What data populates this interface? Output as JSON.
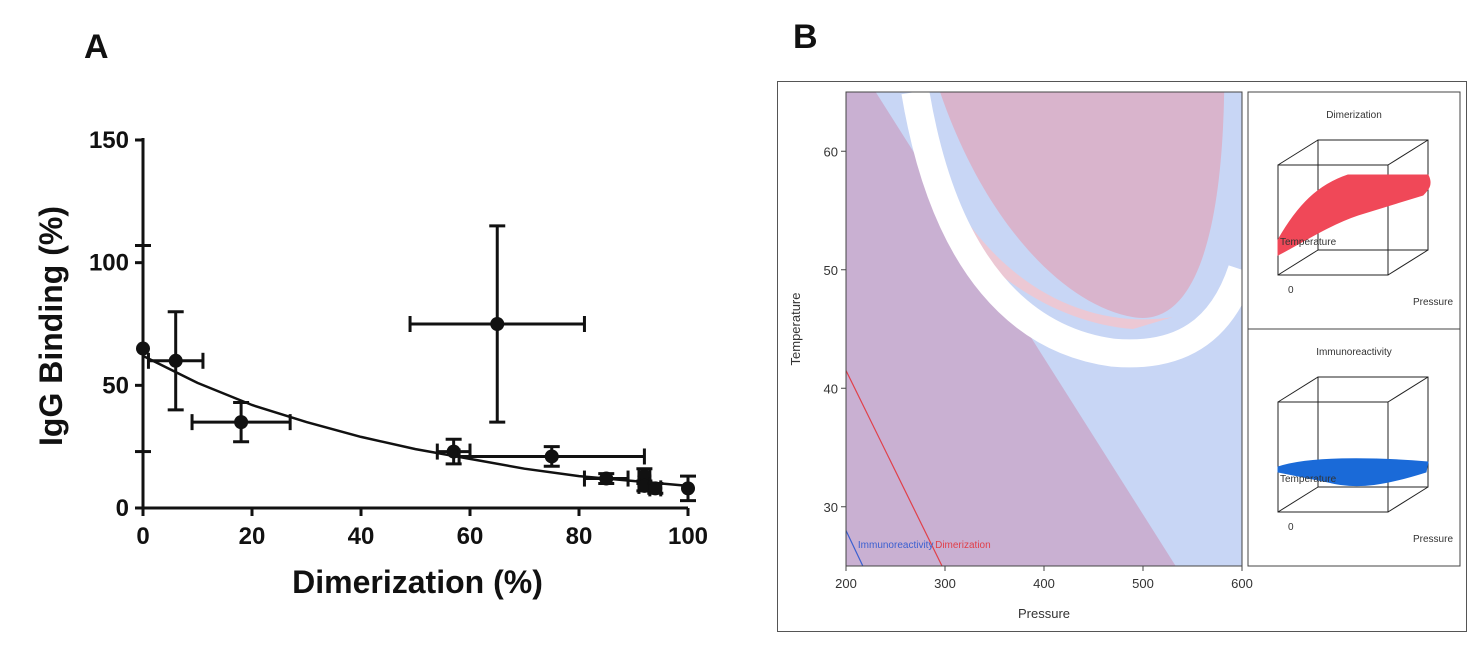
{
  "panel_a": {
    "letter": "A",
    "chart_data": {
      "type": "scatter",
      "xlabel": "Dimerization (%)",
      "ylabel": "IgG Binding (%)",
      "xlim": [
        0,
        100
      ],
      "ylim": [
        0,
        150
      ],
      "x_ticks": [
        "0",
        "20",
        "40",
        "60",
        "80",
        "100"
      ],
      "y_ticks": [
        "0",
        "50",
        "100",
        "150"
      ],
      "grid": false,
      "points": [
        {
          "x": 0,
          "y": 65,
          "xerr": 0,
          "yerr": 42
        },
        {
          "x": 6,
          "y": 60,
          "xerr": 5,
          "yerr": 20
        },
        {
          "x": 18,
          "y": 35,
          "xerr": 9,
          "yerr": 8
        },
        {
          "x": 57,
          "y": 23,
          "xerr": 3,
          "yerr": 5
        },
        {
          "x": 65,
          "y": 75,
          "xerr": 16,
          "yerr": 40
        },
        {
          "x": 75,
          "y": 21,
          "xerr": 17,
          "yerr": 4
        },
        {
          "x": 85,
          "y": 12,
          "xerr": 4,
          "yerr": 2
        },
        {
          "x": 92,
          "y": 13,
          "xerr": 1,
          "yerr": 3
        },
        {
          "x": 92,
          "y": 9,
          "xerr": 1,
          "yerr": 2
        },
        {
          "x": 94,
          "y": 8,
          "xerr": 1,
          "yerr": 2
        },
        {
          "x": 100,
          "y": 8,
          "xerr": 0,
          "yerr": 5
        }
      ],
      "fit_curve": {
        "type": "exponential",
        "x": [
          0,
          10,
          20,
          30,
          40,
          50,
          60,
          70,
          80,
          90,
          100
        ],
        "y": [
          62,
          51,
          42,
          35,
          29,
          24,
          20,
          16,
          13,
          11,
          9
        ]
      }
    }
  },
  "panel_b": {
    "letter": "B",
    "chart_data": [
      {
        "type": "contour",
        "xlabel": "Pressure",
        "ylabel": "Temperature",
        "xlim": [
          200,
          600
        ],
        "ylim": [
          25,
          65
        ],
        "x_ticks": [
          "200",
          "300",
          "400",
          "500",
          "600"
        ],
        "y_ticks": [
          "30",
          "40",
          "50",
          "60"
        ],
        "contour_labels": [
          {
            "text": "Immunoreactivity",
            "color": "#3a5fd0"
          },
          {
            "text": "Dimerization",
            "color": "#e0404a"
          }
        ],
        "colors": {
          "blue_region": "#c8d6f5",
          "pink_region": "#d9b4cc",
          "overlap": "#c9b0d2"
        }
      },
      {
        "type": "surface",
        "title": "Dimerization",
        "axis_labels": [
          "Temperature",
          "0",
          "Pressure"
        ],
        "color": "#f04858"
      },
      {
        "type": "surface",
        "title": "Immunoreactivity",
        "axis_labels": [
          "Temperature",
          "0",
          "Pressure"
        ],
        "color": "#1a6ad8"
      }
    ]
  }
}
